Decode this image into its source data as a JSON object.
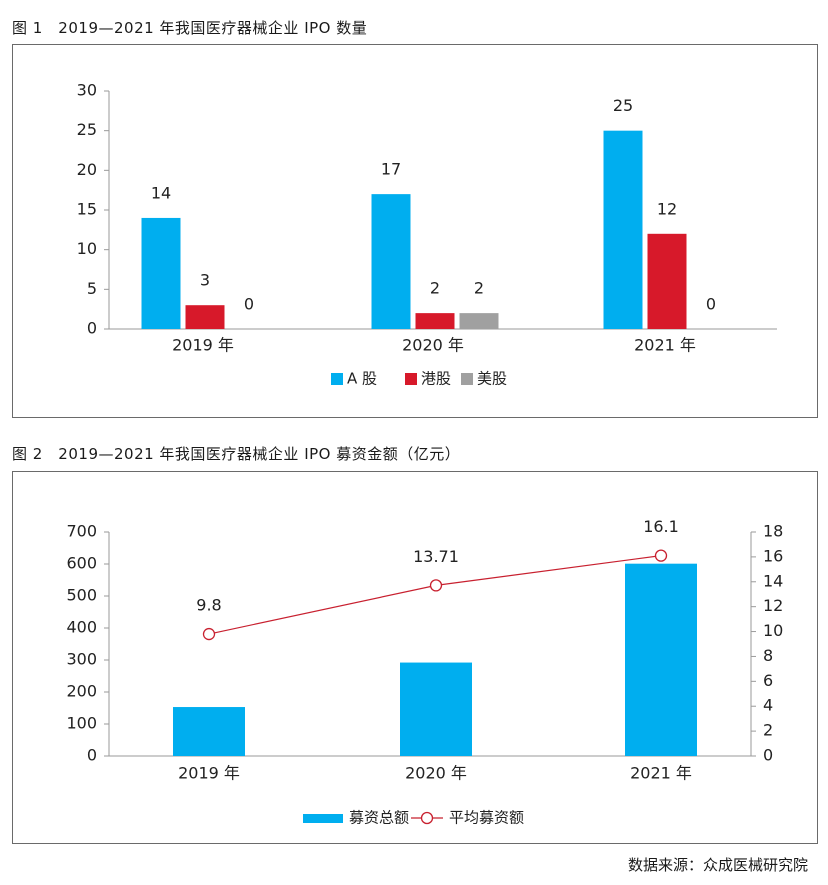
{
  "figure1": {
    "title": "图 1　2019—2021 年我国医疗器械企业 IPO 数量"
  },
  "figure2": {
    "title": "图 2　2019—2021 年我国医疗器械企业 IPO 募资金额（亿元）"
  },
  "source": "数据来源：众成医械研究院",
  "chart_data": [
    {
      "type": "bar",
      "title": "图 1　2019—2021 年我国医疗器械企业 IPO 数量",
      "categories": [
        "2019 年",
        "2020 年",
        "2021 年"
      ],
      "series": [
        {
          "name": "A 股",
          "values": [
            14,
            17,
            25
          ],
          "color": "#00aeef"
        },
        {
          "name": "港股",
          "values": [
            3,
            2,
            12
          ],
          "color": "#d7192a"
        },
        {
          "name": "美股",
          "values": [
            0,
            2,
            0
          ],
          "color": "#a0a0a0"
        }
      ],
      "ylim": [
        0,
        30
      ],
      "yticks": [
        0,
        5,
        10,
        15,
        20,
        25,
        30
      ],
      "grid": false,
      "legend_position": "bottom-center"
    },
    {
      "type": "bar+line",
      "title": "图 2　2019—2021 年我国医疗器械企业 IPO 募资金额（亿元）",
      "categories": [
        "2019 年",
        "2020 年",
        "2021 年"
      ],
      "series": [
        {
          "name": "募资总额",
          "type": "bar",
          "axis": "left",
          "values": [
            153,
            292,
            601
          ],
          "color": "#00aeef"
        },
        {
          "name": "平均募资额",
          "type": "line",
          "axis": "right",
          "values": [
            9.8,
            13.71,
            16.1
          ],
          "labels": [
            "9.8",
            "13.71",
            "16.1"
          ],
          "color": "#c8202f"
        }
      ],
      "ylim_left": [
        0,
        700
      ],
      "yticks_left": [
        0,
        100,
        200,
        300,
        400,
        500,
        600,
        700
      ],
      "ylim_right": [
        0,
        18
      ],
      "yticks_right": [
        0,
        2,
        4,
        6,
        8,
        10,
        12,
        14,
        16,
        18
      ],
      "grid": false,
      "legend_position": "bottom-center"
    }
  ]
}
